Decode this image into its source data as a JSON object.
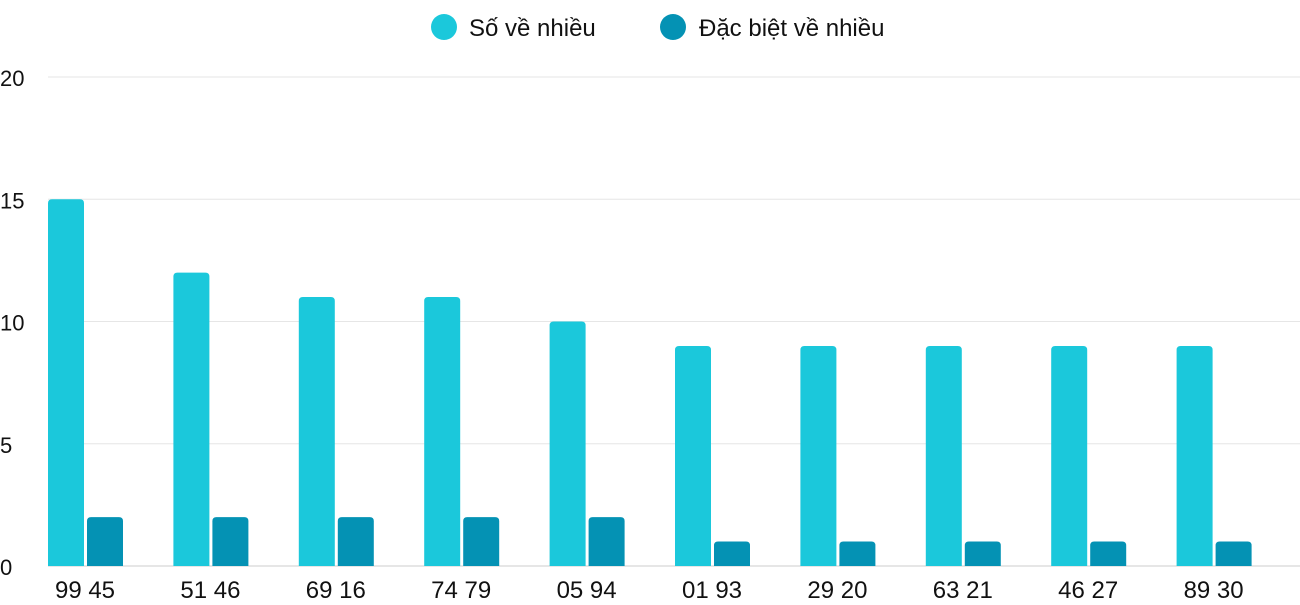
{
  "chart_data": {
    "type": "bar",
    "categories": [
      "99 45",
      "51 46",
      "69 16",
      "74 79",
      "05 94",
      "01 93",
      "29 20",
      "63 21",
      "46 27",
      "89 30"
    ],
    "series": [
      {
        "name": "Số về nhiều",
        "color": "#1bc8db",
        "values": [
          15,
          12,
          11,
          11,
          10,
          9,
          9,
          9,
          9,
          9
        ]
      },
      {
        "name": "Đặc biệt về nhiều",
        "color": "#0492b4",
        "values": [
          2,
          2,
          2,
          2,
          2,
          1,
          1,
          1,
          1,
          1
        ]
      }
    ],
    "ylim": [
      0,
      20
    ],
    "yticks": [
      "0",
      "5",
      "10",
      "15",
      "20"
    ],
    "grid": true,
    "legend_position": "top"
  }
}
